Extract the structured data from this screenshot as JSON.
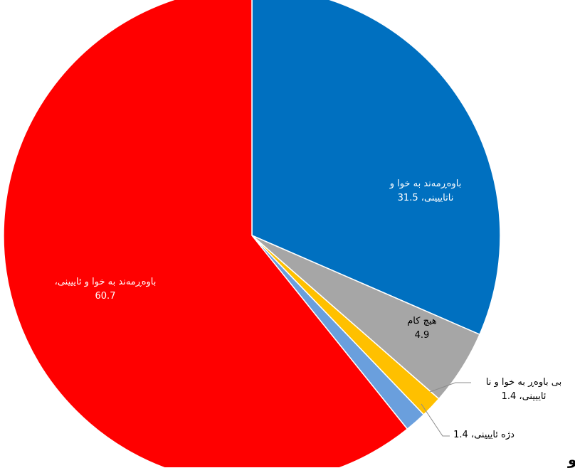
{
  "chart_data": {
    "type": "pie",
    "title": "",
    "slices": [
      {
        "label": "باوەڕمەند بە خوا و ناتاییینی",
        "value": 31.5,
        "color": "#0070C0",
        "text_color": "#ffffff"
      },
      {
        "label": "هیچ کام",
        "value": 4.9,
        "color": "#A6A6A6",
        "text_color": "#000000"
      },
      {
        "label": "بی باوەڕ بە خوا و نا ئاییینی",
        "value": 1.4,
        "color": "#FFC000",
        "text_color": "#000000"
      },
      {
        "label": "دژە ئاییینی",
        "value": 1.4,
        "color": "#6A9FDD",
        "text_color": "#000000"
      },
      {
        "label": "باوەڕمەند بە خوا و ئاییینی",
        "value": 60.7,
        "color": "#FF0000",
        "text_color": "#ffffff"
      }
    ],
    "data_labels": [
      {
        "lines": [
          "باوەڕمەند بە خوا و",
          "ناتاییینی، 31.5"
        ]
      },
      {
        "lines": [
          "هیچ کام",
          "4.9"
        ]
      },
      {
        "lines": [
          "بی باوەڕ بە خوا و نا",
          "ئاییینی، 1.4"
        ]
      },
      {
        "lines": [
          "دژە ئاییینی، 1.4"
        ]
      },
      {
        "lines": [
          "باوەڕمەند بە خوا و ئاییینی،",
          "60.7"
        ]
      }
    ]
  },
  "stray_glyph": "و"
}
